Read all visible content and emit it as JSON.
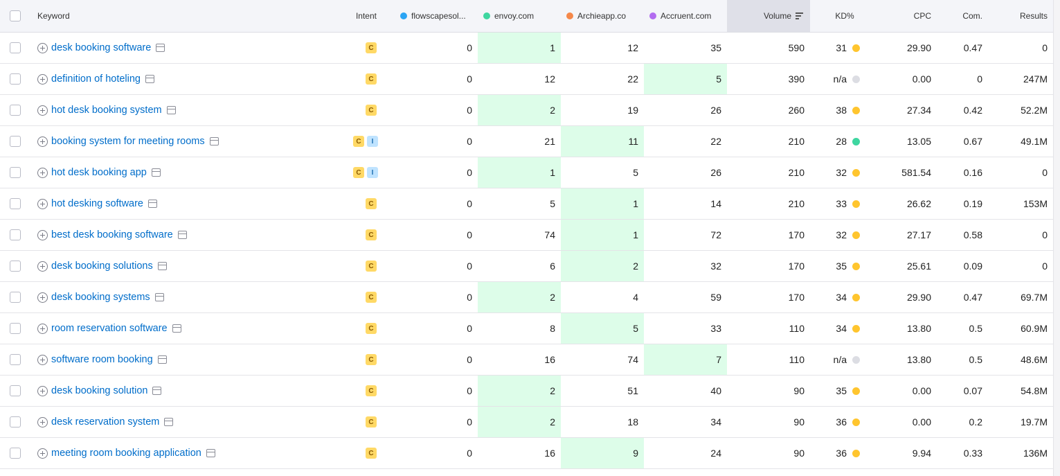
{
  "header": {
    "keyword": "Keyword",
    "intent": "Intent",
    "domains": [
      {
        "name": "flowscapesol...",
        "color": "#2aa4f4"
      },
      {
        "name": "envoy.com",
        "color": "#3ed6a0"
      },
      {
        "name": "Archieapp.co",
        "color": "#f5884a"
      },
      {
        "name": "Accruent.com",
        "color": "#b26cf0"
      }
    ],
    "volume": "Volume",
    "kd": "KD%",
    "cpc": "CPC",
    "com": "Com.",
    "results": "Results"
  },
  "colors": {
    "kd_yellow": "#ffc52e",
    "kd_green": "#3ed6a0",
    "kd_na": "#dcdde3",
    "highlight": "#ddfde9"
  },
  "rows": [
    {
      "keyword": "desk booking software",
      "intent": [
        "C"
      ],
      "d": [
        "0",
        "1",
        "12",
        "35"
      ],
      "best": 1,
      "volume": "590",
      "kd": "31",
      "kd_color": "yellow",
      "cpc": "29.90",
      "com": "0.47",
      "results": "0"
    },
    {
      "keyword": "definition of hoteling",
      "intent": [
        "C"
      ],
      "d": [
        "0",
        "12",
        "22",
        "5"
      ],
      "best": 3,
      "volume": "390",
      "kd": "n/a",
      "kd_color": "na",
      "cpc": "0.00",
      "com": "0",
      "results": "247M"
    },
    {
      "keyword": "hot desk booking system",
      "intent": [
        "C"
      ],
      "d": [
        "0",
        "2",
        "19",
        "26"
      ],
      "best": 1,
      "volume": "260",
      "kd": "38",
      "kd_color": "yellow",
      "cpc": "27.34",
      "com": "0.42",
      "results": "52.2M"
    },
    {
      "keyword": "booking system for meeting rooms",
      "intent": [
        "C",
        "I"
      ],
      "d": [
        "0",
        "21",
        "11",
        "22"
      ],
      "best": 2,
      "volume": "210",
      "kd": "28",
      "kd_color": "green",
      "cpc": "13.05",
      "com": "0.67",
      "results": "49.1M"
    },
    {
      "keyword": "hot desk booking app",
      "intent": [
        "C",
        "I"
      ],
      "d": [
        "0",
        "1",
        "5",
        "26"
      ],
      "best": 1,
      "volume": "210",
      "kd": "32",
      "kd_color": "yellow",
      "cpc": "581.54",
      "com": "0.16",
      "results": "0"
    },
    {
      "keyword": "hot desking software",
      "intent": [
        "C"
      ],
      "d": [
        "0",
        "5",
        "1",
        "14"
      ],
      "best": 2,
      "volume": "210",
      "kd": "33",
      "kd_color": "yellow",
      "cpc": "26.62",
      "com": "0.19",
      "results": "153M"
    },
    {
      "keyword": "best desk booking software",
      "intent": [
        "C"
      ],
      "d": [
        "0",
        "74",
        "1",
        "72"
      ],
      "best": 2,
      "volume": "170",
      "kd": "32",
      "kd_color": "yellow",
      "cpc": "27.17",
      "com": "0.58",
      "results": "0"
    },
    {
      "keyword": "desk booking solutions",
      "intent": [
        "C"
      ],
      "d": [
        "0",
        "6",
        "2",
        "32"
      ],
      "best": 2,
      "volume": "170",
      "kd": "35",
      "kd_color": "yellow",
      "cpc": "25.61",
      "com": "0.09",
      "results": "0"
    },
    {
      "keyword": "desk booking systems",
      "intent": [
        "C"
      ],
      "d": [
        "0",
        "2",
        "4",
        "59"
      ],
      "best": 1,
      "volume": "170",
      "kd": "34",
      "kd_color": "yellow",
      "cpc": "29.90",
      "com": "0.47",
      "results": "69.7M"
    },
    {
      "keyword": "room reservation software",
      "intent": [
        "C"
      ],
      "d": [
        "0",
        "8",
        "5",
        "33"
      ],
      "best": 2,
      "volume": "110",
      "kd": "34",
      "kd_color": "yellow",
      "cpc": "13.80",
      "com": "0.5",
      "results": "60.9M"
    },
    {
      "keyword": "software room booking",
      "intent": [
        "C"
      ],
      "d": [
        "0",
        "16",
        "74",
        "7"
      ],
      "best": 3,
      "volume": "110",
      "kd": "n/a",
      "kd_color": "na",
      "cpc": "13.80",
      "com": "0.5",
      "results": "48.6M"
    },
    {
      "keyword": "desk booking solution",
      "intent": [
        "C"
      ],
      "d": [
        "0",
        "2",
        "51",
        "40"
      ],
      "best": 1,
      "volume": "90",
      "kd": "35",
      "kd_color": "yellow",
      "cpc": "0.00",
      "com": "0.07",
      "results": "54.8M"
    },
    {
      "keyword": "desk reservation system",
      "intent": [
        "C"
      ],
      "d": [
        "0",
        "2",
        "18",
        "34"
      ],
      "best": 1,
      "volume": "90",
      "kd": "36",
      "kd_color": "yellow",
      "cpc": "0.00",
      "com": "0.2",
      "results": "19.7M"
    },
    {
      "keyword": "meeting room booking application",
      "intent": [
        "C"
      ],
      "d": [
        "0",
        "16",
        "9",
        "24"
      ],
      "best": 2,
      "volume": "90",
      "kd": "36",
      "kd_color": "yellow",
      "cpc": "9.94",
      "com": "0.33",
      "results": "136M"
    }
  ]
}
